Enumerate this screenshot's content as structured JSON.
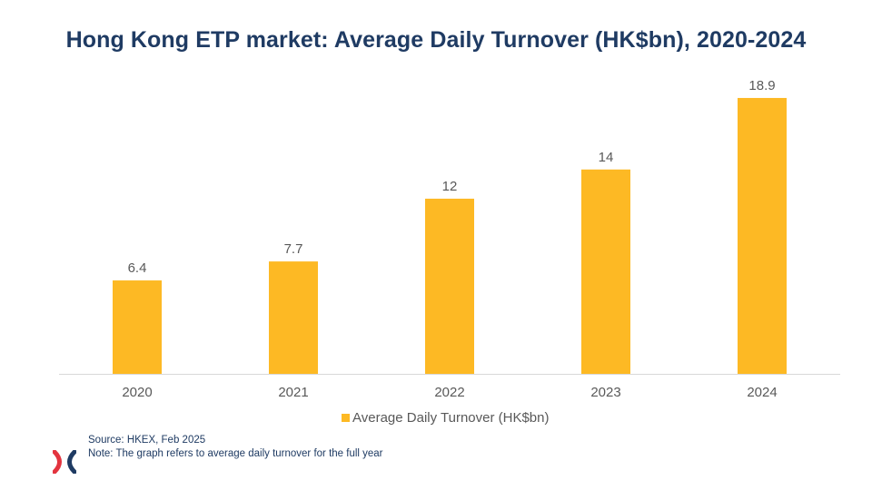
{
  "title": "Hong Kong ETP market: Average Daily Turnover (HK$bn), 2020-2024",
  "chart_data": {
    "type": "bar",
    "categories": [
      "2020",
      "2021",
      "2022",
      "2023",
      "2024"
    ],
    "series": [
      {
        "name": "Average Daily Turnover (HK$bn)",
        "values": [
          6.4,
          7.7,
          12,
          14,
          18.9
        ],
        "labels": [
          "6.4",
          "7.7",
          "12",
          "14",
          "18.9"
        ],
        "color": "#fdb924"
      }
    ],
    "ylim": [
      0,
      20
    ],
    "grid": false,
    "legend_position": "bottom"
  },
  "legend": {
    "label": "Average Daily Turnover (HK$bn)"
  },
  "footer": {
    "source": "Source: HKEX, Feb 2025",
    "note": "Note: The graph refers to average daily turnover for the full year"
  },
  "colors": {
    "title": "#1f3b63",
    "bar": "#fdb924",
    "axis": "#d9d9d9",
    "text": "#595959",
    "logo_red": "#e3343f",
    "logo_navy": "#1f3b63"
  },
  "logo": {
    "icon": "hkex-logo-icon"
  }
}
